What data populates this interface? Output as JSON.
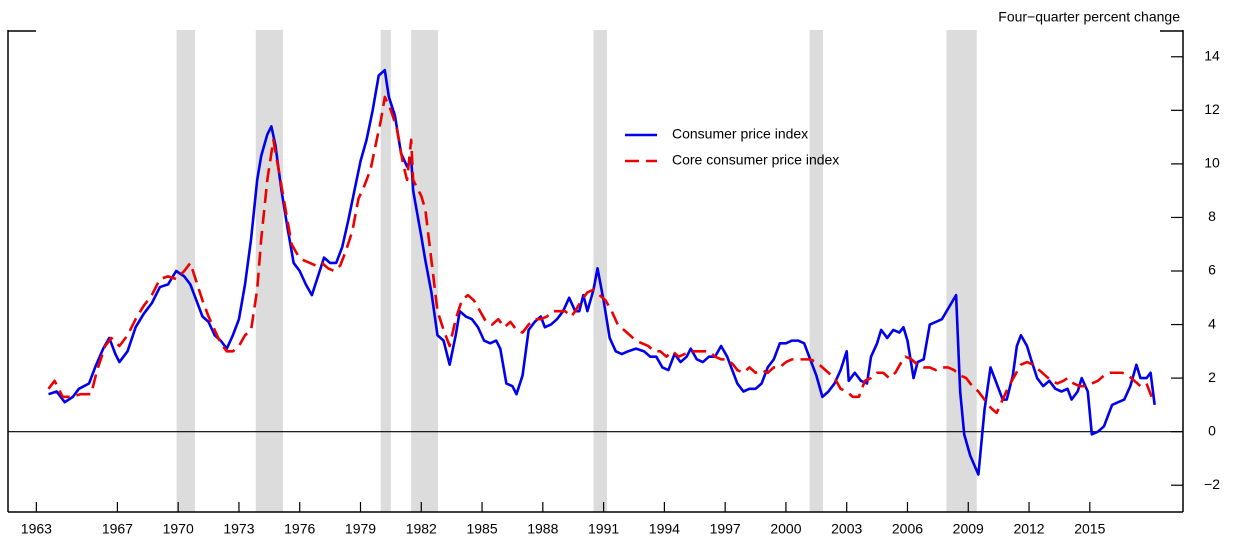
{
  "chart_data": {
    "type": "line",
    "axis_label": "Four−quarter percent change",
    "xlim": [
      1961.6,
      2019.6
    ],
    "xticks": [
      1963,
      1967,
      1970,
      1973,
      1976,
      1979,
      1982,
      1985,
      1988,
      1991,
      1994,
      1997,
      2000,
      2003,
      2006,
      2009,
      2012,
      2015
    ],
    "ylim": [
      -3,
      15
    ],
    "yticks": [
      {
        "value": -2,
        "label": "−2"
      },
      0,
      2,
      4,
      6,
      8,
      10,
      12,
      14
    ],
    "y_axis_side": "right",
    "zero_line": true,
    "legend": "upper center",
    "shading_color": "#dcdcdc",
    "recessions": [
      [
        1969.92,
        1970.83
      ],
      [
        1973.83,
        1975.17
      ],
      [
        1980.0,
        1980.5
      ],
      [
        1981.5,
        1982.83
      ],
      [
        1990.5,
        1991.17
      ],
      [
        2001.17,
        2001.83
      ],
      [
        2007.92,
        2009.42
      ]
    ],
    "series": [
      {
        "name": "Consumer price index",
        "color": "#0000ee",
        "dash": false,
        "x": [
          1963.6,
          1964.0,
          1964.4,
          1964.8,
          1965.1,
          1965.6,
          1965.9,
          1966.3,
          1966.6,
          1966.9,
          1967.1,
          1967.5,
          1967.9,
          1968.3,
          1968.7,
          1969.1,
          1969.5,
          1969.9,
          1970.3,
          1970.6,
          1970.9,
          1971.2,
          1971.5,
          1971.8,
          1972.1,
          1972.4,
          1972.7,
          1973.0,
          1973.3,
          1973.6,
          1973.9,
          1974.1,
          1974.4,
          1974.6,
          1974.8,
          1975.1,
          1975.4,
          1975.7,
          1976.0,
          1976.3,
          1976.6,
          1976.9,
          1977.2,
          1977.5,
          1977.8,
          1978.1,
          1978.4,
          1978.7,
          1979.0,
          1979.3,
          1979.6,
          1979.9,
          1980.2,
          1980.4,
          1980.7,
          1981.0,
          1981.3,
          1981.5,
          1981.6,
          1982.0,
          1982.2,
          1982.5,
          1982.8,
          1983.1,
          1983.4,
          1983.7,
          1983.9,
          1984.2,
          1984.5,
          1984.8,
          1985.1,
          1985.4,
          1985.7,
          1985.9,
          1986.2,
          1986.5,
          1986.7,
          1987.0,
          1987.3,
          1987.6,
          1987.9,
          1988.1,
          1988.4,
          1988.7,
          1989.0,
          1989.3,
          1989.6,
          1989.8,
          1990.0,
          1990.2,
          1990.5,
          1990.7,
          1991.0,
          1991.3,
          1991.6,
          1991.9,
          1992.2,
          1992.6,
          1993.0,
          1993.3,
          1993.6,
          1993.9,
          1994.2,
          1994.5,
          1994.8,
          1995.1,
          1995.3,
          1995.6,
          1995.9,
          1996.2,
          1996.5,
          1996.8,
          1997.1,
          1997.4,
          1997.6,
          1997.9,
          1998.2,
          1998.5,
          1998.8,
          1999.1,
          1999.4,
          1999.7,
          2000.0,
          2000.3,
          2000.6,
          2000.9,
          2001.2,
          2001.5,
          2001.8,
          2002.1,
          2002.4,
          2002.7,
          2003.0,
          2003.1,
          2003.4,
          2003.7,
          2004.0,
          2004.2,
          2004.5,
          2004.7,
          2005.0,
          2005.3,
          2005.6,
          2005.8,
          2006.0,
          2006.3,
          2006.5,
          2006.8,
          2007.1,
          2007.4,
          2007.7,
          2008.4,
          2008.6,
          2008.8,
          2009.1,
          2009.5,
          2009.8,
          2010.1,
          2010.4,
          2010.7,
          2010.9,
          2011.2,
          2011.4,
          2011.6,
          2011.9,
          2012.1,
          2012.4,
          2012.7,
          2013.0,
          2013.3,
          2013.6,
          2013.9,
          2014.1,
          2014.4,
          2014.6,
          2014.9,
          2015.1,
          2015.4,
          2015.7,
          2015.9,
          2016.1,
          2016.4,
          2016.7,
          2017.0,
          2017.3,
          2017.5,
          2017.8,
          2018.0,
          2018.2
        ],
        "values": [
          1.4,
          1.5,
          1.1,
          1.3,
          1.6,
          1.8,
          2.4,
          3.1,
          3.5,
          2.9,
          2.6,
          3.0,
          3.9,
          4.4,
          4.8,
          5.4,
          5.5,
          6.0,
          5.8,
          5.5,
          4.9,
          4.3,
          4.1,
          3.6,
          3.4,
          3.1,
          3.6,
          4.2,
          5.5,
          7.2,
          9.4,
          10.3,
          11.1,
          11.4,
          10.7,
          9.0,
          7.6,
          6.3,
          6.0,
          5.5,
          5.1,
          5.8,
          6.5,
          6.3,
          6.3,
          6.9,
          7.9,
          9.0,
          10.1,
          10.9,
          12.0,
          13.3,
          13.5,
          12.5,
          11.8,
          10.4,
          9.9,
          10.2,
          9.0,
          7.3,
          6.4,
          5.2,
          3.6,
          3.4,
          2.5,
          3.6,
          4.5,
          4.3,
          4.2,
          3.9,
          3.4,
          3.3,
          3.4,
          3.1,
          1.8,
          1.7,
          1.4,
          2.1,
          3.8,
          4.1,
          4.3,
          3.9,
          4.0,
          4.2,
          4.5,
          5.0,
          4.5,
          4.5,
          5.1,
          4.5,
          5.3,
          6.1,
          4.9,
          3.5,
          3.0,
          2.9,
          3.0,
          3.1,
          3.0,
          2.8,
          2.8,
          2.4,
          2.3,
          2.9,
          2.6,
          2.8,
          3.1,
          2.7,
          2.6,
          2.8,
          2.8,
          3.2,
          2.8,
          2.2,
          1.8,
          1.5,
          1.6,
          1.6,
          1.8,
          2.4,
          2.7,
          3.3,
          3.3,
          3.4,
          3.4,
          3.3,
          2.7,
          2.1,
          1.3,
          1.5,
          1.8,
          2.3,
          3.0,
          1.9,
          2.2,
          1.9,
          1.8,
          2.8,
          3.3,
          3.8,
          3.5,
          3.8,
          3.7,
          3.9,
          3.4,
          2.0,
          2.6,
          2.7,
          4.0,
          4.1,
          4.2,
          5.1,
          1.5,
          -0.1,
          -0.9,
          -1.6,
          0.8,
          2.4,
          1.8,
          1.2,
          1.2,
          2.1,
          3.2,
          3.6,
          3.2,
          2.7,
          2.0,
          1.7,
          1.9,
          1.6,
          1.5,
          1.6,
          1.2,
          1.5,
          2.0,
          1.5,
          -0.1,
          0.0,
          0.2,
          0.6,
          1.0,
          1.1,
          1.2,
          1.7,
          2.5,
          2.0,
          2.0,
          2.2,
          1.0
        ]
      },
      {
        "name": "Core consumer price index",
        "color": "#ee0000",
        "dash": true,
        "x": [
          1963.6,
          1963.9,
          1964.3,
          1964.7,
          1965.2,
          1965.7,
          1966.0,
          1966.4,
          1966.7,
          1967.1,
          1967.5,
          1967.9,
          1968.3,
          1968.7,
          1969.1,
          1969.5,
          1969.9,
          1970.3,
          1970.6,
          1970.9,
          1971.2,
          1971.5,
          1971.8,
          1972.1,
          1972.4,
          1972.7,
          1973.0,
          1973.3,
          1973.6,
          1973.9,
          1974.1,
          1974.4,
          1974.7,
          1975.0,
          1975.3,
          1975.6,
          1975.9,
          1976.2,
          1976.5,
          1976.8,
          1977.1,
          1977.4,
          1977.7,
          1978.0,
          1978.3,
          1978.6,
          1978.9,
          1979.2,
          1979.5,
          1979.8,
          1980.0,
          1980.2,
          1980.5,
          1980.8,
          1981.1,
          1981.3,
          1981.5,
          1981.6,
          1982.0,
          1982.2,
          1982.5,
          1982.8,
          1983.1,
          1983.4,
          1983.7,
          1984.0,
          1984.3,
          1984.6,
          1984.9,
          1985.2,
          1985.5,
          1985.8,
          1986.1,
          1986.4,
          1986.7,
          1987.0,
          1987.3,
          1987.6,
          1987.9,
          1988.2,
          1988.5,
          1988.8,
          1989.1,
          1989.4,
          1989.6,
          1989.9,
          1990.2,
          1990.5,
          1990.8,
          1991.1,
          1991.4,
          1991.7,
          1992.0,
          1992.3,
          1992.6,
          1992.9,
          1993.2,
          1993.5,
          1993.8,
          1994.1,
          1994.4,
          1994.7,
          1995.0,
          1995.3,
          1995.6,
          1995.9,
          1996.2,
          1996.5,
          1996.8,
          1997.1,
          1997.4,
          1997.6,
          1997.9,
          1998.2,
          1998.5,
          1998.8,
          1999.1,
          1999.4,
          1999.7,
          2000.0,
          2000.3,
          2000.6,
          2000.9,
          2001.2,
          2001.5,
          2001.8,
          2002.1,
          2002.4,
          2002.7,
          2003.0,
          2003.3,
          2003.6,
          2003.9,
          2004.2,
          2004.5,
          2004.8,
          2005.1,
          2005.4,
          2005.7,
          2005.9,
          2006.2,
          2006.5,
          2006.8,
          2007.1,
          2007.4,
          2007.7,
          2008.0,
          2008.3,
          2008.6,
          2008.9,
          2009.2,
          2009.5,
          2009.8,
          2010.1,
          2010.4,
          2010.7,
          2011.0,
          2011.3,
          2011.6,
          2011.9,
          2012.2,
          2012.5,
          2012.8,
          2013.1,
          2013.4,
          2013.7,
          2013.9,
          2014.2,
          2014.5,
          2014.8,
          2015.1,
          2015.4,
          2015.7,
          2016.0,
          2016.3,
          2016.6,
          2016.9,
          2017.2,
          2017.5,
          2017.8,
          2018.1
        ],
        "values": [
          1.6,
          1.9,
          1.3,
          1.3,
          1.4,
          1.4,
          2.3,
          3.2,
          3.5,
          3.2,
          3.6,
          4.2,
          4.7,
          5.1,
          5.7,
          5.8,
          5.7,
          6.0,
          6.3,
          5.6,
          4.9,
          4.3,
          3.8,
          3.3,
          3.0,
          3.0,
          3.2,
          3.6,
          3.8,
          5.3,
          7.2,
          9.4,
          10.9,
          9.6,
          8.3,
          7.0,
          6.6,
          6.4,
          6.3,
          6.2,
          6.3,
          6.1,
          6.0,
          6.2,
          6.8,
          7.5,
          8.7,
          9.2,
          9.8,
          10.9,
          11.6,
          12.5,
          12.0,
          11.3,
          10.0,
          9.4,
          10.9,
          9.4,
          8.8,
          8.3,
          6.4,
          4.5,
          3.8,
          3.2,
          4.2,
          4.9,
          5.1,
          4.9,
          4.5,
          4.1,
          4.0,
          4.2,
          3.9,
          4.1,
          3.8,
          3.7,
          4.0,
          4.2,
          4.2,
          4.3,
          4.5,
          4.5,
          4.5,
          4.3,
          4.5,
          4.9,
          5.2,
          5.3,
          5.1,
          4.9,
          4.5,
          4.0,
          3.8,
          3.6,
          3.4,
          3.3,
          3.2,
          3.0,
          3.0,
          2.8,
          3.0,
          2.8,
          2.9,
          3.0,
          3.0,
          3.0,
          3.0,
          2.8,
          2.7,
          2.7,
          2.5,
          2.3,
          2.2,
          2.4,
          2.2,
          2.3,
          2.2,
          2.4,
          2.4,
          2.6,
          2.7,
          2.7,
          2.7,
          2.7,
          2.6,
          2.4,
          2.2,
          2.0,
          1.6,
          1.5,
          1.3,
          1.3,
          1.9,
          2.0,
          2.2,
          2.2,
          2.0,
          2.2,
          2.6,
          2.8,
          2.7,
          2.5,
          2.4,
          2.4,
          2.3,
          2.4,
          2.4,
          2.3,
          2.1,
          2.0,
          1.7,
          1.5,
          1.2,
          0.9,
          0.7,
          1.2,
          1.7,
          2.1,
          2.5,
          2.6,
          2.5,
          2.3,
          2.1,
          1.9,
          1.8,
          1.9,
          2.0,
          1.8,
          1.7,
          1.7,
          1.8,
          1.9,
          2.1,
          2.2,
          2.2,
          2.2,
          2.1,
          1.9,
          1.7,
          1.8,
          1.2
        ]
      }
    ]
  }
}
